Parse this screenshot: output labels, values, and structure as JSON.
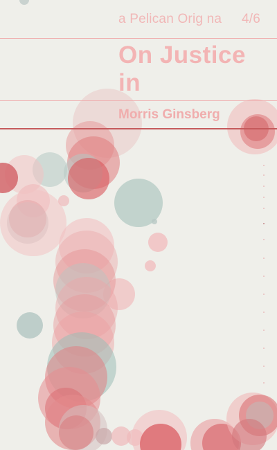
{
  "cover": {
    "series": "a Pelican Orig na",
    "volume": "4/6",
    "title": "On Justice in",
    "author": "Morris Ginsberg"
  },
  "colors": {
    "background": "#efefea",
    "text_pink": "#f3b4b4",
    "accent_red": "#d9575c",
    "accent_teal": "#a9c3bd"
  }
}
